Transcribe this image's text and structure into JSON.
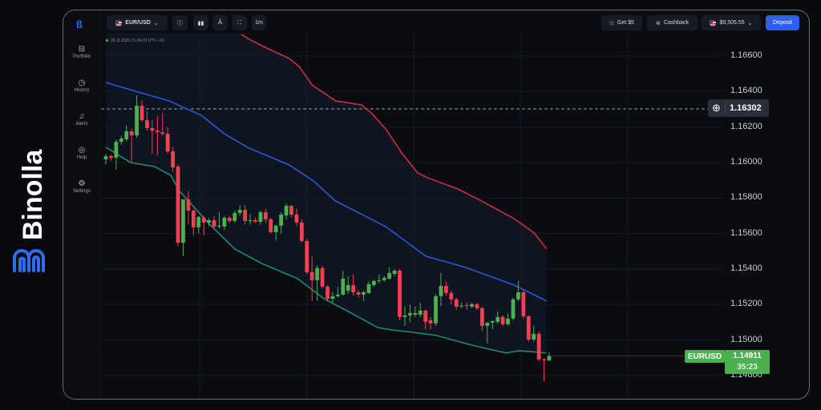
{
  "brand": {
    "name": "Binolla",
    "logo_color": "#2f6df0"
  },
  "sidebar": {
    "items": [
      {
        "label": "Portfolio",
        "icon": "briefcase-icon"
      },
      {
        "label": "History",
        "icon": "clock-icon"
      },
      {
        "label": "Alerts",
        "icon": "bell-icon"
      },
      {
        "label": "Help",
        "icon": "lifebuoy-icon"
      },
      {
        "label": "Settings",
        "icon": "gear-icon"
      }
    ]
  },
  "toolbar": {
    "pair": "EUR/USD",
    "timeframe": "1m",
    "get_bonus": "Get $5",
    "cashback": "Cashback",
    "balance": "$9,505.55",
    "deposit": "Deposit"
  },
  "chart_header": {
    "timestamp": "25.11.2021  21:04:31  UTC +10"
  },
  "colors": {
    "up": "#4caf50",
    "down": "#f23f52",
    "upper_band": "#c8303f",
    "middle_band": "#2e56d6",
    "lower_band": "#1f8a6e",
    "accent": "#2e5ff0"
  },
  "chart_data": {
    "type": "candlestick",
    "symbol": "EURUSD",
    "ylim": [
      1.1472,
      1.1672
    ],
    "y_ticks": [
      "1.16600",
      "1.16400",
      "1.16200",
      "1.16000",
      "1.15800",
      "1.15600",
      "1.15400",
      "1.15200",
      "1.15000",
      "1.14800"
    ],
    "grid": true,
    "crosshair_price": "1.16302",
    "current_price": "1.14911",
    "countdown": "35:23",
    "candles": [
      [
        1.16018,
        1.1605,
        1.1599,
        1.16036
      ],
      [
        1.16036,
        1.16045,
        1.1601,
        1.16027
      ],
      [
        1.16027,
        1.1613,
        1.1596,
        1.16117
      ],
      [
        1.16117,
        1.1615,
        1.161,
        1.16135
      ],
      [
        1.16131,
        1.1621,
        1.1612,
        1.16176
      ],
      [
        1.16176,
        1.1619,
        1.16,
        1.16153
      ],
      [
        1.16153,
        1.16379,
        1.1614,
        1.1632
      ],
      [
        1.1632,
        1.1635,
        1.1623,
        1.16239
      ],
      [
        1.16239,
        1.1629,
        1.1618,
        1.16194
      ],
      [
        1.16194,
        1.1624,
        1.1605,
        1.1618
      ],
      [
        1.1618,
        1.1626,
        1.1604,
        1.16171
      ],
      [
        1.16171,
        1.1628,
        1.1615,
        1.16162
      ],
      [
        1.16162,
        1.162,
        1.1605,
        1.16063
      ],
      [
        1.16063,
        1.1609,
        1.1595,
        1.15973
      ],
      [
        1.15977,
        1.1599,
        1.1553,
        1.15549
      ],
      [
        1.15549,
        1.15793,
        1.15472,
        1.15793
      ],
      [
        1.15793,
        1.1584,
        1.1565,
        1.15729
      ],
      [
        1.15729,
        1.1574,
        1.1559,
        1.15635
      ],
      [
        1.15635,
        1.157,
        1.156,
        1.15693
      ],
      [
        1.15689,
        1.157,
        1.1559,
        1.15662
      ],
      [
        1.15662,
        1.1569,
        1.1564,
        1.15675
      ],
      [
        1.15675,
        1.157,
        1.1563,
        1.15639
      ],
      [
        1.15644,
        1.1572,
        1.1563,
        1.15644
      ],
      [
        1.15639,
        1.157,
        1.1562,
        1.15689
      ],
      [
        1.15689,
        1.157,
        1.1566,
        1.15671
      ],
      [
        1.15671,
        1.1573,
        1.1566,
        1.15716
      ],
      [
        1.15716,
        1.1576,
        1.157,
        1.15734
      ],
      [
        1.15734,
        1.1576,
        1.1565,
        1.15671
      ],
      [
        1.15671,
        1.1571,
        1.1565,
        1.15675
      ],
      [
        1.15675,
        1.1569,
        1.1566,
        1.15666
      ],
      [
        1.15666,
        1.1573,
        1.1565,
        1.1572
      ],
      [
        1.1572,
        1.1574,
        1.1566,
        1.1568
      ],
      [
        1.1568,
        1.1569,
        1.156,
        1.15608
      ],
      [
        1.15608,
        1.1565,
        1.1556,
        1.15644
      ],
      [
        1.15644,
        1.1572,
        1.156,
        1.15707
      ],
      [
        1.15702,
        1.1577,
        1.1568,
        1.15756
      ],
      [
        1.15756,
        1.1576,
        1.1569,
        1.15707
      ],
      [
        1.15707,
        1.1574,
        1.1564,
        1.15662
      ],
      [
        1.15662,
        1.1568,
        1.1555,
        1.15558
      ],
      [
        1.15558,
        1.1557,
        1.1537,
        1.15382
      ],
      [
        1.15382,
        1.1547,
        1.1522,
        1.15337
      ],
      [
        1.15337,
        1.1542,
        1.1522,
        1.15405
      ],
      [
        1.15405,
        1.1542,
        1.1529,
        1.15301
      ],
      [
        1.15301,
        1.1531,
        1.1522,
        1.15233
      ],
      [
        1.15233,
        1.1527,
        1.1521,
        1.15247
      ],
      [
        1.15247,
        1.153,
        1.1524,
        1.15256
      ],
      [
        1.15256,
        1.1539,
        1.1525,
        1.15346
      ],
      [
        1.15278,
        1.1536,
        1.1526,
        1.1531
      ],
      [
        1.1531,
        1.1537,
        1.1525,
        1.15269
      ],
      [
        1.15269,
        1.1528,
        1.1524,
        1.15256
      ],
      [
        1.15256,
        1.1528,
        1.1522,
        1.15269
      ],
      [
        1.15265,
        1.1533,
        1.1526,
        1.15315
      ],
      [
        1.1531,
        1.1534,
        1.153,
        1.15333
      ],
      [
        1.15333,
        1.1537,
        1.1532,
        1.15337
      ],
      [
        1.15337,
        1.1536,
        1.1533,
        1.15351
      ],
      [
        1.15346,
        1.1541,
        1.1534,
        1.15378
      ],
      [
        1.15373,
        1.154,
        1.1536,
        1.15391
      ],
      [
        1.15391,
        1.154,
        1.1511,
        1.1513
      ],
      [
        1.1513,
        1.1519,
        1.1508,
        1.15139
      ],
      [
        1.15139,
        1.152,
        1.151,
        1.15152
      ],
      [
        1.15143,
        1.1519,
        1.1513,
        1.15152
      ],
      [
        1.15143,
        1.1521,
        1.1513,
        1.15166
      ],
      [
        1.15166,
        1.1517,
        1.1506,
        1.15103
      ],
      [
        1.15112,
        1.1513,
        1.1506,
        1.15094
      ],
      [
        1.15094,
        1.1526,
        1.1508,
        1.15247
      ],
      [
        1.15247,
        1.15378,
        1.1519,
        1.15305
      ],
      [
        1.15305,
        1.1533,
        1.1525,
        1.15265
      ],
      [
        1.15265,
        1.1528,
        1.152,
        1.15229
      ],
      [
        1.15229,
        1.1524,
        1.1517,
        1.15188
      ],
      [
        1.15193,
        1.1521,
        1.1518,
        1.15193
      ],
      [
        1.15197,
        1.1521,
        1.1517,
        1.15193
      ],
      [
        1.15188,
        1.1521,
        1.1518,
        1.15202
      ],
      [
        1.15202,
        1.1521,
        1.1517,
        1.15179
      ],
      [
        1.15179,
        1.1519,
        1.1505,
        1.1508
      ],
      [
        1.1508,
        1.151,
        1.1498,
        1.15098
      ],
      [
        1.15098,
        1.1511,
        1.1506,
        1.15107
      ],
      [
        1.15103,
        1.1516,
        1.1509,
        1.1513
      ],
      [
        1.1513,
        1.1514,
        1.1508,
        1.15089
      ],
      [
        1.15089,
        1.1515,
        1.1508,
        1.15121
      ],
      [
        1.15121,
        1.1524,
        1.1511,
        1.15229
      ],
      [
        1.15229,
        1.15333,
        1.1522,
        1.15269
      ],
      [
        1.15269,
        1.1528,
        1.1512,
        1.15134
      ],
      [
        1.15134,
        1.1514,
        1.1499,
        1.15003
      ],
      [
        1.15003,
        1.1508,
        1.1499,
        1.15035
      ],
      [
        1.15035,
        1.1505,
        1.1488,
        1.14891
      ],
      [
        1.14891,
        1.149,
        1.14769,
        1.14886
      ],
      [
        1.14886,
        1.1493,
        1.1488,
        1.14911
      ]
    ],
    "bands": {
      "upper": [
        [
          26.3,
          1.16722
        ],
        [
          27.8,
          1.16695
        ],
        [
          30.9,
          1.16649
        ],
        [
          35.6,
          1.16586
        ],
        [
          37.5,
          1.16541
        ],
        [
          40,
          1.16437
        ],
        [
          44.6,
          1.16347
        ],
        [
          49.6,
          1.16325
        ],
        [
          51.5,
          1.1628
        ],
        [
          54.3,
          1.16189
        ],
        [
          57.4,
          1.16054
        ],
        [
          60.5,
          1.15941
        ],
        [
          62.8,
          1.1591
        ],
        [
          68.3,
          1.15851
        ],
        [
          72.9,
          1.15783
        ],
        [
          79.2,
          1.15684
        ],
        [
          83.1,
          1.15603
        ],
        [
          85.5,
          1.15513
        ]
      ],
      "middle": [
        [
          0,
          1.16451
        ],
        [
          4.2,
          1.16415
        ],
        [
          12.3,
          1.16347
        ],
        [
          18.5,
          1.16266
        ],
        [
          23.2,
          1.16158
        ],
        [
          27.8,
          1.16081
        ],
        [
          35.6,
          1.15986
        ],
        [
          40.3,
          1.15896
        ],
        [
          44.5,
          1.15784
        ],
        [
          54.3,
          1.15639
        ],
        [
          62.1,
          1.15472
        ],
        [
          69.8,
          1.15409
        ],
        [
          79.2,
          1.1531
        ],
        [
          85.5,
          1.1522
        ]
      ],
      "lower": [
        [
          0,
          1.16086
        ],
        [
          4.8,
          1.16
        ],
        [
          9.5,
          1.15977
        ],
        [
          12.6,
          1.15928
        ],
        [
          14.2,
          1.15842
        ],
        [
          19.8,
          1.15662
        ],
        [
          25,
          1.15513
        ],
        [
          30.2,
          1.15432
        ],
        [
          37.2,
          1.15346
        ],
        [
          42.3,
          1.15233
        ],
        [
          47.6,
          1.15152
        ],
        [
          52.7,
          1.15071
        ],
        [
          55.4,
          1.15057
        ],
        [
          59.4,
          1.15044
        ],
        [
          64.1,
          1.15026
        ],
        [
          70.9,
          1.14972
        ],
        [
          77.6,
          1.14927
        ],
        [
          80.2,
          1.1494
        ],
        [
          85.4,
          1.14927
        ]
      ]
    }
  }
}
